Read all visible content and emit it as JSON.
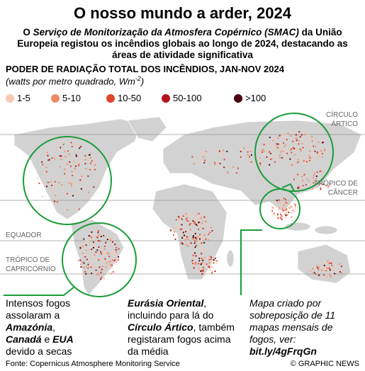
{
  "header": {
    "title": "O nosso mundo a arder, 2024",
    "subtitle": [
      {
        "text": "O "
      },
      {
        "text": "Serviço de Monitorização da Atmosfera Copérnico (SMAC)",
        "style": "italic"
      },
      {
        "text": " da União Europeia registou os incêndios globais ao longo de 2024, destacando as áreas de atividade significativa"
      }
    ]
  },
  "legend": {
    "heading": "PODER DE RADIAÇÃO TOTAL DOS INCÊNDIOS, JAN-NOV 2024",
    "unit": [
      "(watts por metro quadrado, Wm",
      "-2",
      ")"
    ],
    "items": [
      {
        "label": "1-5",
        "color": "#f6c8b4"
      },
      {
        "label": "5-10",
        "color": "#ee8a68"
      },
      {
        "label": "10-50",
        "color": "#e0452b"
      },
      {
        "label": "50-100",
        "color": "#b3151d"
      },
      {
        "label": ">100",
        "color": "#4a0010"
      }
    ]
  },
  "map_labels": {
    "arctic": [
      "CÍRCULO",
      "ÁRTICO"
    ],
    "cancer": [
      "TRÓPICO DE",
      "CÂNCER"
    ],
    "equator": "EQUADOR",
    "capricorn": [
      "TRÓPICO DE",
      "CAPRICÓRNIO"
    ]
  },
  "annotations": [
    [
      {
        "text": "Intensos fogos assolaram a "
      },
      {
        "text": "Amazónia",
        "style": "bi"
      },
      {
        "text": ", "
      },
      {
        "text": "Canadá",
        "style": "bi"
      },
      {
        "text": " e "
      },
      {
        "text": "EUA",
        "style": "bi"
      },
      {
        "text": " devido a secas"
      }
    ],
    [
      {
        "text": "Eurásia Oriental",
        "style": "bi"
      },
      {
        "text": ", incluindo para lá do "
      },
      {
        "text": "Círculo Ártico",
        "style": "bi"
      },
      {
        "text": ", também registaram fogos acima da média"
      }
    ],
    [
      {
        "text": "Mapa criado por sobreposição de 11 mapas mensais de fogos, ver: "
      },
      {
        "text": "bit.ly/4gFrqGn",
        "style": "b"
      }
    ]
  ],
  "footer": {
    "source": "Fonte: Copernicus Atmosphere Monitoring Service",
    "credit": "© GRAPHIC NEWS"
  }
}
